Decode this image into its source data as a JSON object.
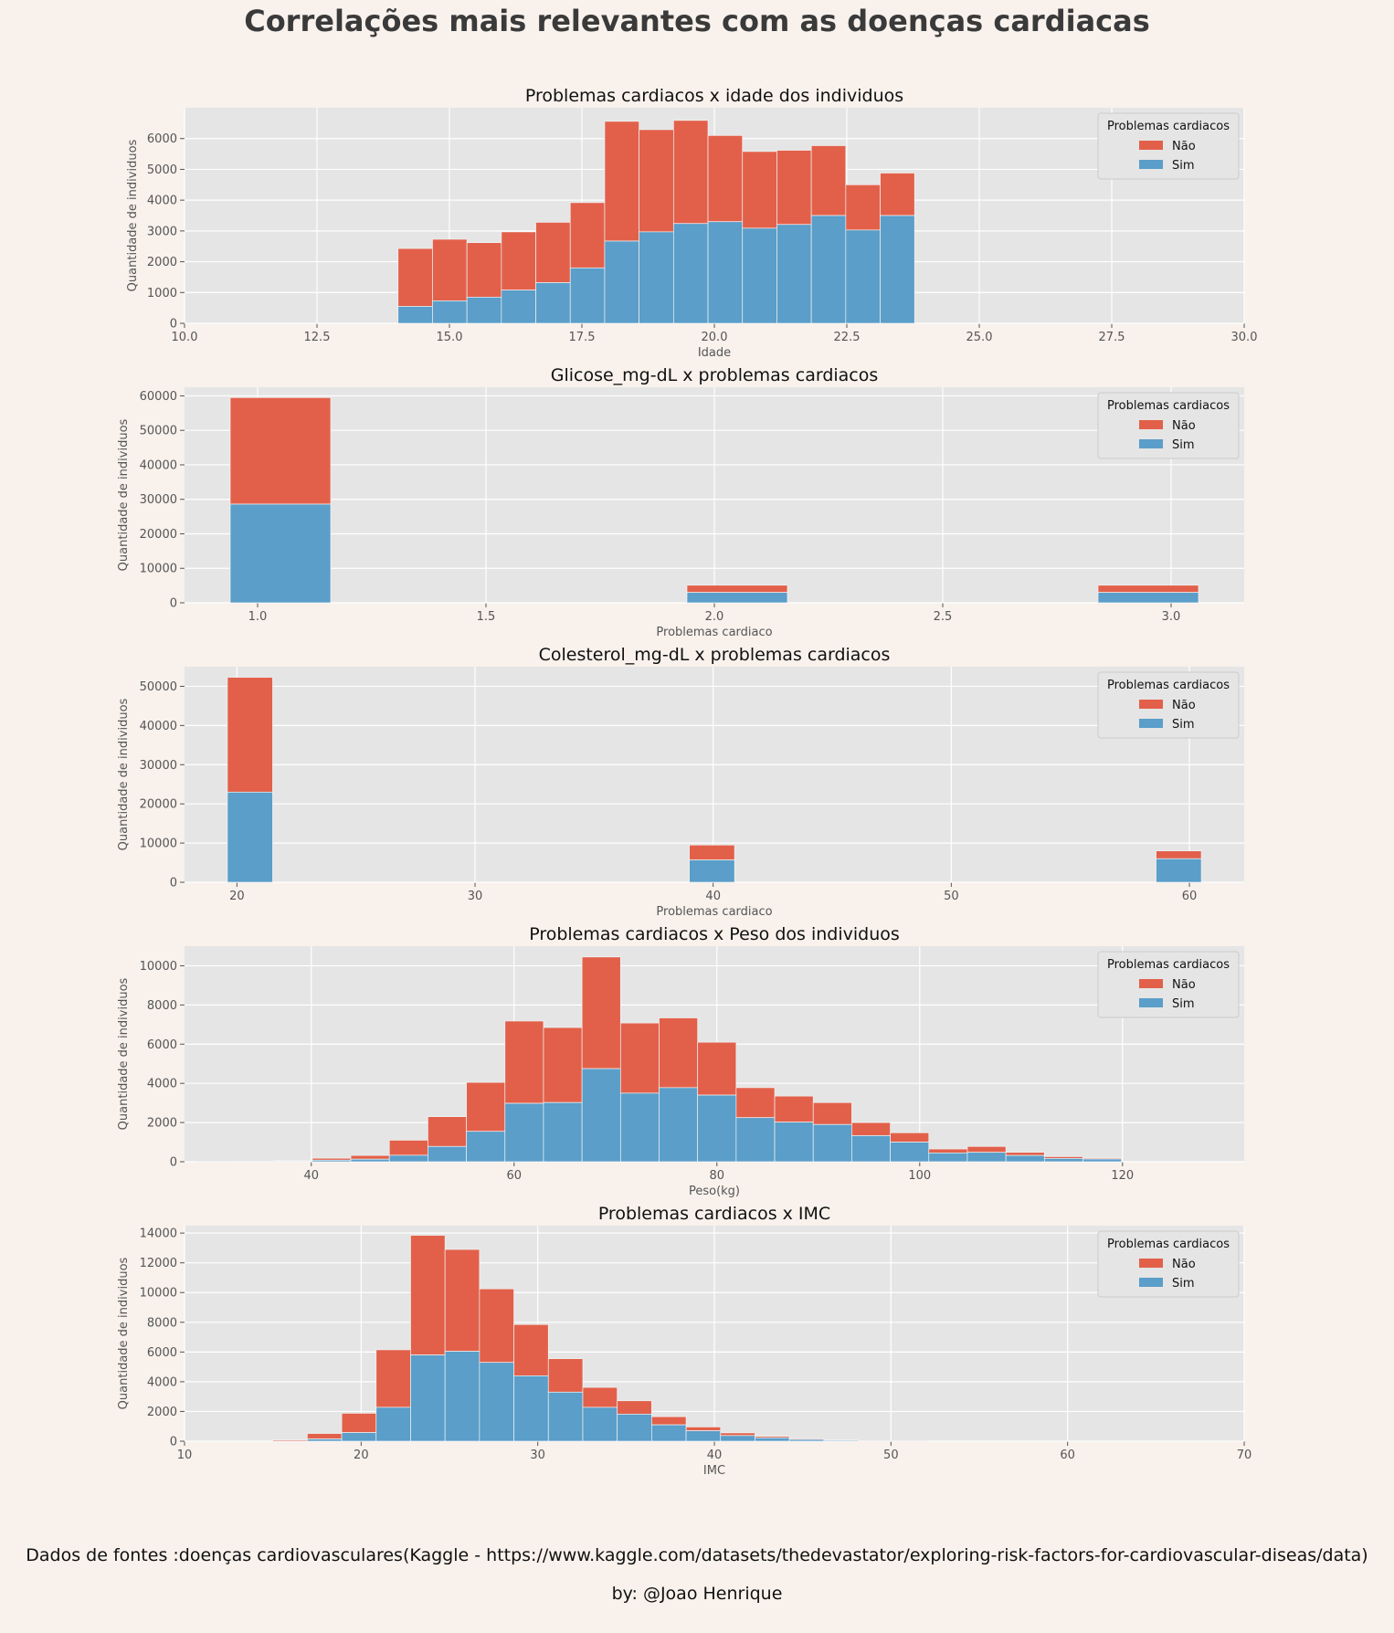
{
  "title": "Correlações mais relevantes com as doenças cardiacas",
  "source_text": "Dados de fontes :doenças cardiovasculares(Kaggle - https://www.kaggle.com/datasets/thedevastator/exploring-risk-factors-for-cardiovascular-diseas/data)",
  "credit_text": "by: @Joao Henrique",
  "colors": {
    "nao": "#e2604a",
    "sim": "#5a9ec9",
    "plot_bg": "#e5e5e5",
    "grid": "#ffffff",
    "page_bg": "#f8f1ec"
  },
  "chart_data": [
    {
      "type": "bar",
      "stacked": true,
      "title": "Problemas cardiacos x idade dos individuos",
      "xlabel": "Idade",
      "ylabel": "Quantidade de individuos",
      "xlim": [
        10,
        30
      ],
      "ylim": [
        0,
        7000
      ],
      "xticks": [
        10.0,
        12.5,
        15.0,
        17.5,
        20.0,
        22.5,
        25.0,
        27.5,
        30.0
      ],
      "xtick_labels": [
        "10.0",
        "12.5",
        "15.0",
        "17.5",
        "20.0",
        "22.5",
        "25.0",
        "27.5",
        "30.0"
      ],
      "yticks": [
        0,
        1000,
        2000,
        3000,
        4000,
        5000,
        6000
      ],
      "ytick_labels": [
        "0",
        "1000",
        "2000",
        "3000",
        "4000",
        "5000",
        "6000"
      ],
      "legend": {
        "title": "Problemas cardiacos",
        "position": "top-right",
        "labels": [
          "Não",
          "Sim"
        ]
      },
      "bins": [
        {
          "x0": 14.03,
          "x1": 14.68,
          "sim": 550,
          "total": 2430
        },
        {
          "x0": 14.68,
          "x1": 15.33,
          "sim": 730,
          "total": 2730
        },
        {
          "x0": 15.33,
          "x1": 15.98,
          "sim": 850,
          "total": 2620
        },
        {
          "x0": 15.98,
          "x1": 16.63,
          "sim": 1080,
          "total": 2970
        },
        {
          "x0": 16.63,
          "x1": 17.28,
          "sim": 1320,
          "total": 3280
        },
        {
          "x0": 17.28,
          "x1": 17.93,
          "sim": 1800,
          "total": 3920
        },
        {
          "x0": 17.93,
          "x1": 18.58,
          "sim": 2670,
          "total": 6560
        },
        {
          "x0": 18.58,
          "x1": 19.23,
          "sim": 2970,
          "total": 6290
        },
        {
          "x0": 19.23,
          "x1": 19.88,
          "sim": 3240,
          "total": 6590
        },
        {
          "x0": 19.88,
          "x1": 20.53,
          "sim": 3300,
          "total": 6100
        },
        {
          "x0": 20.53,
          "x1": 21.18,
          "sim": 3090,
          "total": 5580
        },
        {
          "x0": 21.18,
          "x1": 21.83,
          "sim": 3210,
          "total": 5620
        },
        {
          "x0": 21.83,
          "x1": 22.48,
          "sim": 3500,
          "total": 5770
        },
        {
          "x0": 22.48,
          "x1": 23.13,
          "sim": 3030,
          "total": 4500
        },
        {
          "x0": 23.13,
          "x1": 23.78,
          "sim": 3500,
          "total": 4880
        }
      ]
    },
    {
      "type": "bar",
      "stacked": true,
      "title": "Glicose_mg-dL x problemas cardiacos",
      "xlabel": "Problemas cardiaco",
      "ylabel": "Quantidade de individuos",
      "xlim": [
        0.84,
        3.16
      ],
      "ylim": [
        0,
        62500
      ],
      "xticks": [
        1.0,
        1.5,
        2.0,
        2.5,
        3.0
      ],
      "xtick_labels": [
        "1.0",
        "1.5",
        "2.0",
        "2.5",
        "3.0"
      ],
      "yticks": [
        0,
        10000,
        20000,
        30000,
        40000,
        50000,
        60000
      ],
      "ytick_labels": [
        "0",
        "10000",
        "20000",
        "30000",
        "40000",
        "50000",
        "60000"
      ],
      "legend": {
        "title": "Problemas cardiacos",
        "position": "top-right",
        "labels": [
          "Não",
          "Sim"
        ]
      },
      "bins": [
        {
          "x0": 0.94,
          "x1": 1.16,
          "sim": 28600,
          "total": 59500
        },
        {
          "x0": 1.94,
          "x1": 2.16,
          "sim": 3000,
          "total": 5100
        },
        {
          "x0": 2.84,
          "x1": 3.06,
          "sim": 3000,
          "total": 5100
        }
      ]
    },
    {
      "type": "bar",
      "stacked": true,
      "title": "Colesterol_mg-dL x problemas cardiacos",
      "xlabel": "Problemas cardiaco",
      "ylabel": "Quantidade de individuos",
      "xlim": [
        17.8,
        62.3
      ],
      "ylim": [
        0,
        55000
      ],
      "xticks": [
        20,
        30,
        40,
        50,
        60
      ],
      "xtick_labels": [
        "20",
        "30",
        "40",
        "50",
        "60"
      ],
      "yticks": [
        0,
        10000,
        20000,
        30000,
        40000,
        50000
      ],
      "ytick_labels": [
        "0",
        "10000",
        "20000",
        "30000",
        "40000",
        "50000"
      ],
      "legend": {
        "title": "Problemas cardiacos",
        "position": "top-right",
        "labels": [
          "Não",
          "Sim"
        ]
      },
      "bins": [
        {
          "x0": 19.6,
          "x1": 21.5,
          "sim": 23000,
          "total": 52300
        },
        {
          "x0": 39.0,
          "x1": 40.9,
          "sim": 5700,
          "total": 9500
        },
        {
          "x0": 58.6,
          "x1": 60.5,
          "sim": 6000,
          "total": 8000
        }
      ]
    },
    {
      "type": "bar",
      "stacked": true,
      "title": "Problemas cardiacos x Peso dos individuos",
      "xlabel": "Peso(kg)",
      "ylabel": "Quantidade de individuos",
      "xlim": [
        27.5,
        132
      ],
      "ylim": [
        0,
        11000
      ],
      "xticks": [
        40,
        60,
        80,
        100,
        120
      ],
      "xtick_labels": [
        "40",
        "60",
        "80",
        "100",
        "120"
      ],
      "yticks": [
        0,
        2000,
        4000,
        6000,
        8000,
        10000
      ],
      "ytick_labels": [
        "0",
        "2000",
        "4000",
        "6000",
        "8000",
        "10000"
      ],
      "legend": {
        "title": "Problemas cardiacos",
        "position": "top-right",
        "labels": [
          "Não",
          "Sim"
        ]
      },
      "bins": [
        {
          "x0": 28.7,
          "x1": 32.5,
          "sim": 10,
          "total": 20
        },
        {
          "x0": 32.5,
          "x1": 36.3,
          "sim": 10,
          "total": 30
        },
        {
          "x0": 36.3,
          "x1": 40.1,
          "sim": 30,
          "total": 60
        },
        {
          "x0": 40.1,
          "x1": 43.9,
          "sim": 80,
          "total": 180
        },
        {
          "x0": 43.9,
          "x1": 47.7,
          "sim": 130,
          "total": 320
        },
        {
          "x0": 47.7,
          "x1": 51.5,
          "sim": 330,
          "total": 1100
        },
        {
          "x0": 51.5,
          "x1": 55.3,
          "sim": 780,
          "total": 2300
        },
        {
          "x0": 55.3,
          "x1": 59.1,
          "sim": 1550,
          "total": 4050
        },
        {
          "x0": 59.1,
          "x1": 62.9,
          "sim": 2980,
          "total": 7180
        },
        {
          "x0": 62.9,
          "x1": 66.7,
          "sim": 3020,
          "total": 6850
        },
        {
          "x0": 66.7,
          "x1": 70.5,
          "sim": 4750,
          "total": 10450
        },
        {
          "x0": 70.5,
          "x1": 74.3,
          "sim": 3500,
          "total": 7080
        },
        {
          "x0": 74.3,
          "x1": 78.1,
          "sim": 3780,
          "total": 7340
        },
        {
          "x0": 78.1,
          "x1": 81.9,
          "sim": 3400,
          "total": 6100
        },
        {
          "x0": 81.9,
          "x1": 85.7,
          "sim": 2250,
          "total": 3780
        },
        {
          "x0": 85.7,
          "x1": 89.5,
          "sim": 2020,
          "total": 3350
        },
        {
          "x0": 89.5,
          "x1": 93.3,
          "sim": 1900,
          "total": 3020
        },
        {
          "x0": 93.3,
          "x1": 97.1,
          "sim": 1330,
          "total": 2000
        },
        {
          "x0": 97.1,
          "x1": 100.9,
          "sim": 1000,
          "total": 1480
        },
        {
          "x0": 100.9,
          "x1": 104.7,
          "sim": 450,
          "total": 650
        },
        {
          "x0": 104.7,
          "x1": 108.5,
          "sim": 480,
          "total": 780
        },
        {
          "x0": 108.5,
          "x1": 112.3,
          "sim": 320,
          "total": 480
        },
        {
          "x0": 112.3,
          "x1": 116.1,
          "sim": 170,
          "total": 260
        },
        {
          "x0": 116.1,
          "x1": 119.9,
          "sim": 140,
          "total": 190
        }
      ]
    },
    {
      "type": "bar",
      "stacked": true,
      "title": "Problemas cardiacos x IMC",
      "xlabel": "IMC",
      "ylabel": "Quantidade de individuos",
      "xlim": [
        10,
        70
      ],
      "ylim": [
        0,
        14500
      ],
      "xticks": [
        10,
        20,
        30,
        40,
        50,
        60,
        70
      ],
      "xtick_labels": [
        "10",
        "20",
        "30",
        "40",
        "50",
        "60",
        "70"
      ],
      "yticks": [
        0,
        2000,
        4000,
        6000,
        8000,
        10000,
        12000,
        14000
      ],
      "ytick_labels": [
        "0",
        "2000",
        "4000",
        "6000",
        "8000",
        "10000",
        "12000",
        "14000"
      ],
      "legend": {
        "title": "Problemas cardiacos",
        "position": "top-right",
        "labels": [
          "Não",
          "Sim"
        ]
      },
      "bins": [
        {
          "x0": 15.0,
          "x1": 16.95,
          "sim": 10,
          "total": 80
        },
        {
          "x0": 16.95,
          "x1": 18.9,
          "sim": 150,
          "total": 520
        },
        {
          "x0": 18.9,
          "x1": 20.85,
          "sim": 580,
          "total": 1880
        },
        {
          "x0": 20.85,
          "x1": 22.8,
          "sim": 2280,
          "total": 6150
        },
        {
          "x0": 22.8,
          "x1": 24.75,
          "sim": 5800,
          "total": 13850
        },
        {
          "x0": 24.75,
          "x1": 26.7,
          "sim": 6050,
          "total": 12900
        },
        {
          "x0": 26.7,
          "x1": 28.65,
          "sim": 5300,
          "total": 10250
        },
        {
          "x0": 28.65,
          "x1": 30.6,
          "sim": 4400,
          "total": 7850
        },
        {
          "x0": 30.6,
          "x1": 32.55,
          "sim": 3300,
          "total": 5550
        },
        {
          "x0": 32.55,
          "x1": 34.5,
          "sim": 2280,
          "total": 3620
        },
        {
          "x0": 34.5,
          "x1": 36.45,
          "sim": 1820,
          "total": 2720
        },
        {
          "x0": 36.45,
          "x1": 38.4,
          "sim": 1100,
          "total": 1650
        },
        {
          "x0": 38.4,
          "x1": 40.35,
          "sim": 700,
          "total": 960
        },
        {
          "x0": 40.35,
          "x1": 42.3,
          "sim": 380,
          "total": 560
        },
        {
          "x0": 42.3,
          "x1": 44.25,
          "sim": 230,
          "total": 330
        },
        {
          "x0": 44.25,
          "x1": 46.2,
          "sim": 120,
          "total": 180
        },
        {
          "x0": 46.2,
          "x1": 48.15,
          "sim": 60,
          "total": 90
        },
        {
          "x0": 48.15,
          "x1": 50.1,
          "sim": 20,
          "total": 40
        },
        {
          "x0": 50.1,
          "x1": 52.05,
          "sim": 10,
          "total": 20
        }
      ]
    }
  ]
}
